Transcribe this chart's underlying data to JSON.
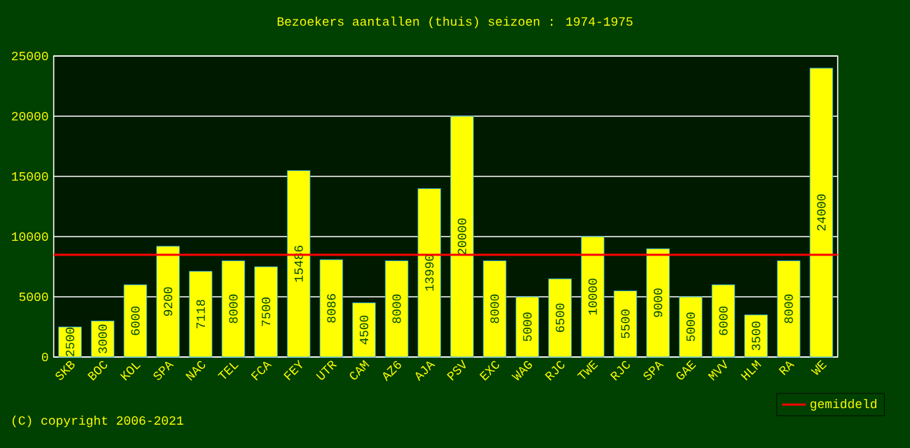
{
  "chart_data": {
    "type": "bar",
    "title": "Bezoekers aantallen (thuis) seizoen : 1974-1975",
    "categories": [
      "SKB",
      "BOC",
      "KOL",
      "SPA",
      "NAC",
      "TEL",
      "FCA",
      "FEY",
      "UTR",
      "CAM",
      "AZ6",
      "AJA",
      "PSV",
      "EXC",
      "WAG",
      "RJC",
      "TWE",
      "RJC",
      "SPA",
      "GAE",
      "MVV",
      "HLM",
      "RA",
      "WE"
    ],
    "values": [
      2500,
      3000,
      6000,
      9200,
      7118,
      8000,
      7500,
      15486,
      8086,
      4500,
      8000,
      13990,
      20000,
      8000,
      5000,
      6500,
      10000,
      5500,
      9000,
      5000,
      6000,
      3500,
      8000,
      24000
    ],
    "color": "#ffff00",
    "ylim": [
      0,
      25000
    ],
    "yticks": [
      0,
      5000,
      10000,
      15000,
      20000,
      25000
    ],
    "grid": "y",
    "data_labels": true,
    "ref_lines": [
      {
        "axis": "y",
        "value": 8495,
        "label": "gemiddeld",
        "color": "#ff0000"
      }
    ],
    "legend": "bottom right",
    "annotations": [
      "(C) copyright 2006-2021"
    ]
  }
}
